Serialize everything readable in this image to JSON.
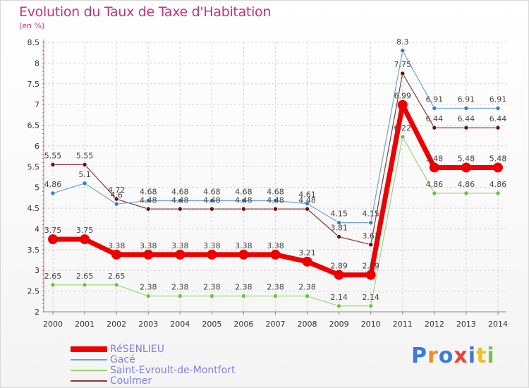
{
  "header": {
    "title": "Evolution du Taux de Taxe d'Habitation",
    "subtitle": "(en %)"
  },
  "logo": {
    "text": "Proxiti",
    "colors": [
      "#3a7bd5",
      "#f08a24",
      "#3a7bd5",
      "#e8423c",
      "#3a7bd5",
      "#f0c020",
      "#7cc242"
    ]
  },
  "chart_data": {
    "type": "line",
    "title": "Evolution du Taux de Taxe d'Habitation",
    "ylabel": "(en %)",
    "xlabel": "",
    "x": [
      "2000",
      "2001",
      "2002",
      "2003",
      "2004",
      "2005",
      "2006",
      "2007",
      "2008",
      "2009",
      "2010",
      "2011",
      "2012",
      "2013",
      "2014"
    ],
    "ylim": [
      2,
      8.5
    ],
    "yticks": [
      "2",
      "2.5",
      "3",
      "3.5",
      "4",
      "4.5",
      "5",
      "5.5",
      "6",
      "6.5",
      "7",
      "7.5",
      "8",
      "8.5"
    ],
    "grid": true,
    "legend_position": "bottom-left",
    "series": [
      {
        "name": "RéSENLIEU",
        "color": "#ee0000",
        "marker": "#ee0000",
        "width": 7,
        "values": [
          3.75,
          3.75,
          3.38,
          3.38,
          3.38,
          3.38,
          3.38,
          3.38,
          3.21,
          2.89,
          2.89,
          6.99,
          5.48,
          5.48,
          5.48
        ],
        "labels": [
          "3.75",
          "3.75",
          "3.38",
          "3.38",
          "3.38",
          "3.38",
          "3.38",
          "3.38",
          "3.21",
          "2.89",
          "2.89",
          "6.99",
          "5.48",
          "5.48",
          "5.48"
        ]
      },
      {
        "name": "Gacé",
        "color": "#6ca4d8",
        "marker": "#2e7fc8",
        "width": 1.2,
        "values": [
          4.86,
          5.1,
          4.6,
          4.68,
          4.68,
          4.68,
          4.68,
          4.68,
          4.61,
          4.15,
          4.15,
          8.3,
          6.91,
          6.91,
          6.91
        ],
        "labels": [
          "4.86",
          "5.1",
          "4.6",
          "4.68",
          "4.68",
          "4.68",
          "4.68",
          "4.68",
          "4.61",
          "4.15",
          "4.15",
          "8.3",
          "6.91",
          "6.91",
          "6.91"
        ]
      },
      {
        "name": "Saint-Evroult-de-Montfort",
        "color": "#9ad874",
        "marker": "#6cc23c",
        "width": 1.2,
        "values": [
          2.65,
          2.65,
          2.65,
          2.38,
          2.38,
          2.38,
          2.38,
          2.38,
          2.38,
          2.14,
          2.14,
          6.22,
          4.86,
          4.86,
          4.86
        ],
        "labels": [
          "2.65",
          "2.65",
          "2.65",
          "2.38",
          "2.38",
          "2.38",
          "2.38",
          "2.38",
          "2.38",
          "2.14",
          "2.14",
          "6.22",
          "4.86",
          "4.86",
          "4.86"
        ]
      },
      {
        "name": "Coulmer",
        "color": "#8a3a3a",
        "marker": "#6a1010",
        "width": 1.2,
        "values": [
          5.55,
          5.55,
          4.72,
          4.48,
          4.48,
          4.48,
          4.48,
          4.48,
          4.48,
          3.81,
          3.62,
          7.75,
          6.44,
          6.44,
          6.44
        ],
        "labels": [
          "5.55",
          "5.55",
          "4.72",
          "4.48",
          "4.48",
          "4.48",
          "4.48",
          "4.48",
          "4.48",
          "3.81",
          "3.62",
          "7.75",
          "6.44",
          "6.44",
          "6.44"
        ]
      }
    ]
  }
}
